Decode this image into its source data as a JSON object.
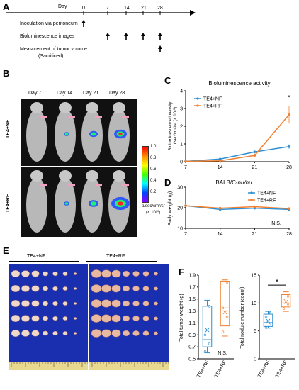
{
  "panel_labels": {
    "A": "A",
    "B": "B",
    "C": "C",
    "D": "D",
    "E": "E",
    "F": "F"
  },
  "timeline": {
    "axis_label": "Day",
    "days": [
      "0",
      "7",
      "14",
      "21",
      "28"
    ],
    "rows": [
      "Inoculation via peritoneum",
      "Bioluminescence images",
      "Measurement of tumor volume",
      "(Sacrificed)"
    ]
  },
  "imaging": {
    "days": [
      "Day 7",
      "Day 14",
      "Day 21",
      "Day 28"
    ],
    "groups": [
      "TE4+NF",
      "TE4+RF"
    ],
    "colorbar_ticks": [
      "1.0",
      "0.8",
      "0.6",
      "0.4",
      "0.2"
    ],
    "colorbar_unit_line1": "p/sec/cm²/sr",
    "colorbar_unit_line2": "(× 10¹⁰)"
  },
  "tumors": {
    "groups": [
      "TE4+NF",
      "TE4+RF"
    ]
  },
  "colors": {
    "nf": "#2f8fd0",
    "rf": "#f08030"
  },
  "chart_data": [
    {
      "type": "line",
      "title": "Bioluminescence activity",
      "ylabel_line1": "Bioluminescence intensity",
      "ylabel_line2": "p/sec/cm²/sr  (× 10¹⁰)",
      "x": [
        7,
        14,
        21,
        28
      ],
      "xticks": [
        "7",
        "14",
        "21",
        "28"
      ],
      "ylim": [
        0,
        4
      ],
      "yticks": [
        "0",
        "1",
        "2",
        "3",
        "4"
      ],
      "series": [
        {
          "name": "TE4+NF",
          "values": [
            0.02,
            0.15,
            0.55,
            0.85
          ],
          "err": [
            0.02,
            0.05,
            0.08,
            0.12
          ]
        },
        {
          "name": "TE4+RF",
          "values": [
            0.02,
            0.05,
            0.35,
            2.65
          ],
          "err": [
            0.02,
            0.03,
            0.1,
            0.5
          ]
        }
      ],
      "annotation": "*",
      "legend": "top-left"
    },
    {
      "type": "line",
      "title": "BALB/C-",
      "title_italic": "nu/nu",
      "ylabel": "Body weight (g)",
      "x": [
        7,
        14,
        21,
        28
      ],
      "xticks": [
        "7",
        "14",
        "21",
        "28"
      ],
      "ylim": [
        10,
        30
      ],
      "yticks": [
        "10",
        "20",
        "30"
      ],
      "series": [
        {
          "name": "TE4+NF",
          "values": [
            21,
            19.2,
            19.8,
            19.2
          ]
        },
        {
          "name": "TE4+RF",
          "values": [
            21,
            19.8,
            20.5,
            19.6
          ]
        }
      ],
      "annotation": "N.S.",
      "legend": "top-right"
    },
    {
      "type": "box",
      "ylabel": "Total tumor weight (g)",
      "ylim": [
        0.5,
        1.9
      ],
      "yticks": [
        "0.5",
        "0.7",
        "0.9",
        "1.1",
        "1.3",
        "1.5",
        "1.7",
        "1.9"
      ],
      "categories": [
        "TE4+NF",
        "TE4+RF"
      ],
      "boxes": [
        {
          "min": 0.6,
          "q1": 0.7,
          "median": 0.82,
          "q3": 1.38,
          "max": 1.48,
          "mean": 0.98,
          "points": [
            0.62,
            0.75,
            0.9,
            1.38
          ]
        },
        {
          "min": 0.88,
          "q1": 1.05,
          "median": 1.35,
          "q3": 1.8,
          "max": 1.82,
          "mean": 1.28,
          "points": [
            0.95,
            1.2,
            1.35,
            1.78
          ]
        }
      ],
      "annotation": "N.S."
    },
    {
      "type": "box",
      "ylabel": "Total nodule number (count)",
      "ylim": [
        0,
        15
      ],
      "yticks": [
        "0",
        "5",
        "10",
        "15"
      ],
      "categories": [
        "TE4+NF",
        "TE4+RF"
      ],
      "boxes": [
        {
          "min": 5.5,
          "q1": 5.8,
          "median": 6.5,
          "q3": 8.0,
          "max": 8.5,
          "mean": 6.8,
          "points": [
            5.6,
            6.4,
            7.5,
            8.2
          ]
        },
        {
          "min": 8.5,
          "q1": 9.3,
          "median": 10.0,
          "q3": 11.5,
          "max": 12.0,
          "mean": 10.2,
          "points": [
            9.0,
            9.8,
            10.5,
            11.2
          ]
        }
      ],
      "annotation": "*"
    }
  ]
}
